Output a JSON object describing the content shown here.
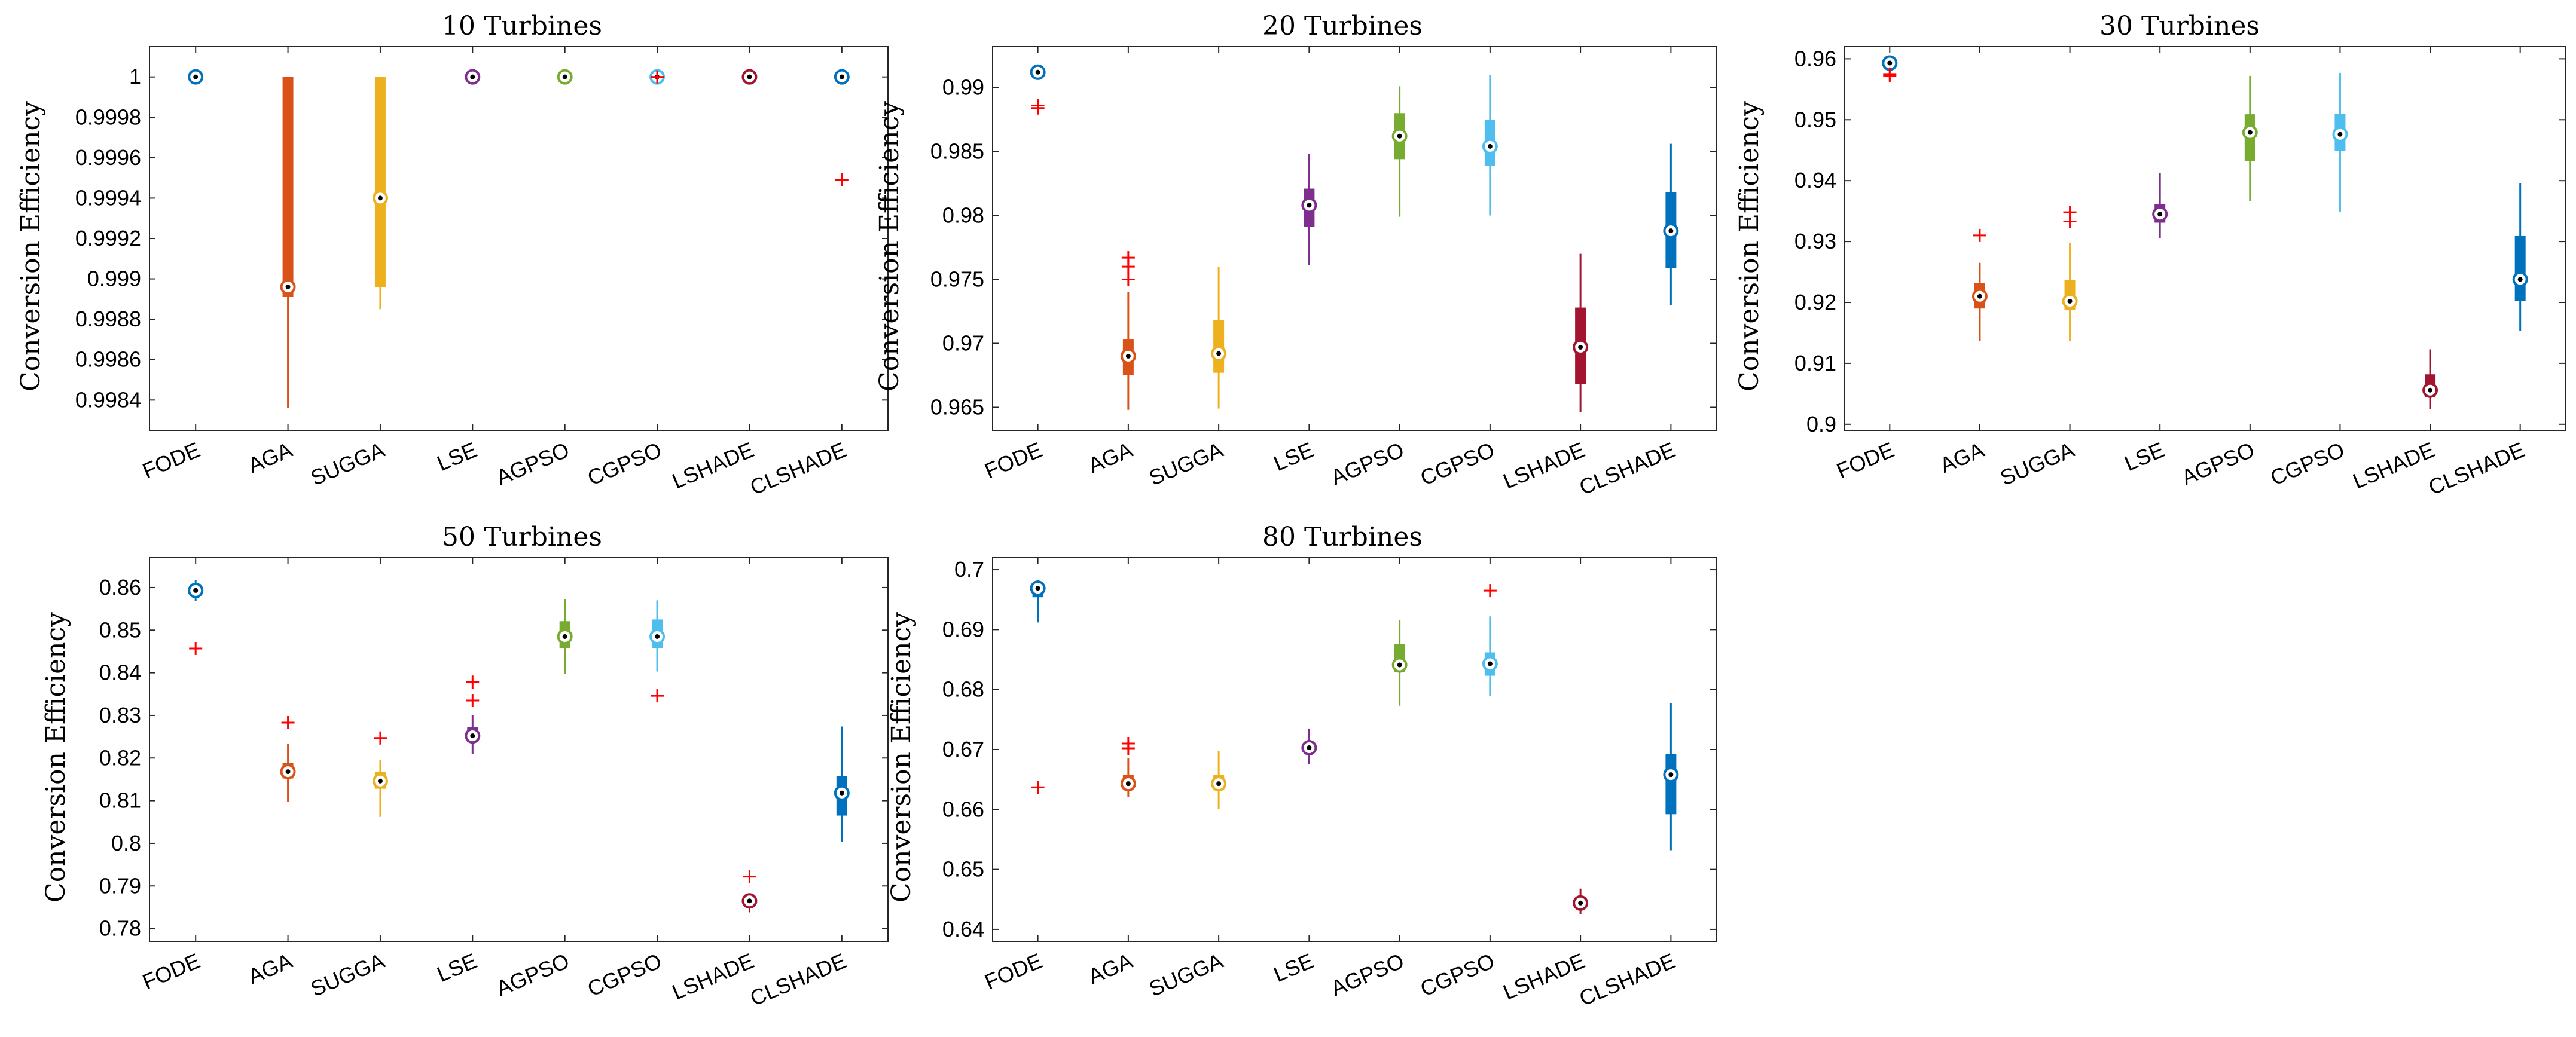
{
  "chart_data": [
    {
      "type": "boxplot",
      "title": "10 Turbines",
      "xlabel": "",
      "ylabel": "Conversion Efficiency",
      "categories": [
        "FODE",
        "AGA",
        "SUGGA",
        "LSE",
        "AGPSO",
        "CGPSO",
        "LSHADE",
        "CLSHADE"
      ],
      "ylim": [
        0.99825,
        1.00015
      ],
      "yticks": [
        0.9984,
        0.9986,
        0.9988,
        0.999,
        0.9992,
        0.9994,
        0.9996,
        0.9998,
        1
      ],
      "ytick_labels": [
        "0.9984",
        "0.9986",
        "0.9988",
        "0.999",
        "0.9992",
        "0.9994",
        "0.9996",
        "0.9998",
        "1"
      ],
      "boxes": [
        {
          "median": 1,
          "q1": 1,
          "q3": 1,
          "whisker_low": 1,
          "whisker_high": 1,
          "outliers": []
        },
        {
          "median": 0.99896,
          "q1": 0.99891,
          "q3": 1,
          "whisker_low": 0.99836,
          "whisker_high": 1,
          "outliers": []
        },
        {
          "median": 0.9994,
          "q1": 0.99896,
          "q3": 1,
          "whisker_low": 0.99885,
          "whisker_high": 1,
          "outliers": []
        },
        {
          "median": 1,
          "q1": 1,
          "q3": 1,
          "whisker_low": 1,
          "whisker_high": 1,
          "outliers": []
        },
        {
          "median": 1,
          "q1": 1,
          "q3": 1,
          "whisker_low": 1,
          "whisker_high": 1,
          "outliers": []
        },
        {
          "median": 1,
          "q1": 1,
          "q3": 1,
          "whisker_low": 1,
          "whisker_high": 1,
          "outliers": [
            1
          ]
        },
        {
          "median": 1,
          "q1": 1,
          "q3": 1,
          "whisker_low": 1,
          "whisker_high": 1,
          "outliers": []
        },
        {
          "median": 1,
          "q1": 1,
          "q3": 1,
          "whisker_low": 1,
          "whisker_high": 1,
          "outliers": [
            0.99949
          ]
        }
      ]
    },
    {
      "type": "boxplot",
      "title": "20 Turbines",
      "xlabel": "",
      "ylabel": "Conversion Efficiency",
      "categories": [
        "FODE",
        "AGA",
        "SUGGA",
        "LSE",
        "AGPSO",
        "CGPSO",
        "LSHADE",
        "CLSHADE"
      ],
      "ylim": [
        0.9632,
        0.9932
      ],
      "yticks": [
        0.965,
        0.97,
        0.975,
        0.98,
        0.985,
        0.99
      ],
      "ytick_labels": [
        "0.965",
        "0.97",
        "0.975",
        "0.98",
        "0.985",
        "0.99"
      ],
      "boxes": [
        {
          "median": 0.9912,
          "q1": 0.9908,
          "q3": 0.9916,
          "whisker_low": 0.9906,
          "whisker_high": 0.9918,
          "outliers": [
            0.9886,
            0.9884
          ]
        },
        {
          "median": 0.969,
          "q1": 0.9675,
          "q3": 0.9703,
          "whisker_low": 0.9648,
          "whisker_high": 0.974,
          "outliers": [
            0.975,
            0.976,
            0.9767
          ]
        },
        {
          "median": 0.9692,
          "q1": 0.9677,
          "q3": 0.9718,
          "whisker_low": 0.9649,
          "whisker_high": 0.976,
          "outliers": []
        },
        {
          "median": 0.9808,
          "q1": 0.9791,
          "q3": 0.9821,
          "whisker_low": 0.9761,
          "whisker_high": 0.9848,
          "outliers": []
        },
        {
          "median": 0.9862,
          "q1": 0.9844,
          "q3": 0.988,
          "whisker_low": 0.9799,
          "whisker_high": 0.9901,
          "outliers": []
        },
        {
          "median": 0.9854,
          "q1": 0.9839,
          "q3": 0.9875,
          "whisker_low": 0.98,
          "whisker_high": 0.991,
          "outliers": []
        },
        {
          "median": 0.9697,
          "q1": 0.9668,
          "q3": 0.9728,
          "whisker_low": 0.9646,
          "whisker_high": 0.977,
          "outliers": []
        },
        {
          "median": 0.9788,
          "q1": 0.9759,
          "q3": 0.9818,
          "whisker_low": 0.973,
          "whisker_high": 0.9856,
          "outliers": []
        }
      ]
    },
    {
      "type": "boxplot",
      "title": "30 Turbines",
      "xlabel": "",
      "ylabel": "Conversion Efficiency",
      "categories": [
        "FODE",
        "AGA",
        "SUGGA",
        "LSE",
        "AGPSO",
        "CGPSO",
        "LSHADE",
        "CLSHADE"
      ],
      "ylim": [
        0.899,
        0.962
      ],
      "yticks": [
        0.9,
        0.91,
        0.92,
        0.93,
        0.94,
        0.95,
        0.96
      ],
      "ytick_labels": [
        "0.9",
        "0.91",
        "0.92",
        "0.93",
        "0.94",
        "0.95",
        "0.96"
      ],
      "boxes": [
        {
          "median": 0.9593,
          "q1": 0.9589,
          "q3": 0.9599,
          "whisker_low": 0.9586,
          "whisker_high": 0.9603,
          "outliers": [
            0.9575,
            0.9572
          ]
        },
        {
          "median": 0.921,
          "q1": 0.919,
          "q3": 0.9232,
          "whisker_low": 0.9137,
          "whisker_high": 0.9265,
          "outliers": [
            0.931
          ]
        },
        {
          "median": 0.9202,
          "q1": 0.9188,
          "q3": 0.9237,
          "whisker_low": 0.9137,
          "whisker_high": 0.9298,
          "outliers": [
            0.9333,
            0.9348
          ]
        },
        {
          "median": 0.9345,
          "q1": 0.9331,
          "q3": 0.9361,
          "whisker_low": 0.9305,
          "whisker_high": 0.9412,
          "outliers": []
        },
        {
          "median": 0.9479,
          "q1": 0.9432,
          "q3": 0.9509,
          "whisker_low": 0.9366,
          "whisker_high": 0.9572,
          "outliers": []
        },
        {
          "median": 0.9476,
          "q1": 0.9449,
          "q3": 0.951,
          "whisker_low": 0.9349,
          "whisker_high": 0.9577,
          "outliers": []
        },
        {
          "median": 0.9056,
          "q1": 0.9045,
          "q3": 0.9082,
          "whisker_low": 0.9025,
          "whisker_high": 0.9123,
          "outliers": []
        },
        {
          "median": 0.9238,
          "q1": 0.9202,
          "q3": 0.9309,
          "whisker_low": 0.9153,
          "whisker_high": 0.9396,
          "outliers": []
        }
      ]
    },
    {
      "type": "boxplot",
      "title": "50 Turbines",
      "xlabel": "",
      "ylabel": "Conversion Efficiency",
      "categories": [
        "FODE",
        "AGA",
        "SUGGA",
        "LSE",
        "AGPSO",
        "CGPSO",
        "LSHADE",
        "CLSHADE"
      ],
      "ylim": [
        0.777,
        0.867
      ],
      "yticks": [
        0.78,
        0.79,
        0.8,
        0.81,
        0.82,
        0.83,
        0.84,
        0.85,
        0.86
      ],
      "ytick_labels": [
        "0.78",
        "0.79",
        "0.8",
        "0.81",
        "0.82",
        "0.83",
        "0.84",
        "0.85",
        "0.86"
      ],
      "boxes": [
        {
          "median": 0.8593,
          "q1": 0.8582,
          "q3": 0.8608,
          "whisker_low": 0.8568,
          "whisker_high": 0.8618,
          "outliers": [
            0.8457
          ]
        },
        {
          "median": 0.8168,
          "q1": 0.8152,
          "q3": 0.8188,
          "whisker_low": 0.8097,
          "whisker_high": 0.8234,
          "outliers": [
            0.8283
          ]
        },
        {
          "median": 0.8146,
          "q1": 0.8128,
          "q3": 0.8168,
          "whisker_low": 0.8062,
          "whisker_high": 0.8195,
          "outliers": [
            0.8247
          ]
        },
        {
          "median": 0.8252,
          "q1": 0.8237,
          "q3": 0.8272,
          "whisker_low": 0.821,
          "whisker_high": 0.83,
          "outliers": [
            0.8335,
            0.8378
          ]
        },
        {
          "median": 0.8485,
          "q1": 0.8457,
          "q3": 0.8521,
          "whisker_low": 0.8397,
          "whisker_high": 0.8573,
          "outliers": []
        },
        {
          "median": 0.8485,
          "q1": 0.8458,
          "q3": 0.8525,
          "whisker_low": 0.8403,
          "whisker_high": 0.857,
          "outliers": [
            0.8346
          ]
        },
        {
          "median": 0.7865,
          "q1": 0.7855,
          "q3": 0.7875,
          "whisker_low": 0.7838,
          "whisker_high": 0.7882,
          "outliers": [
            0.7922
          ]
        },
        {
          "median": 0.8118,
          "q1": 0.8065,
          "q3": 0.8157,
          "whisker_low": 0.8004,
          "whisker_high": 0.8274,
          "outliers": []
        }
      ]
    },
    {
      "type": "boxplot",
      "title": "80 Turbines",
      "xlabel": "",
      "ylabel": "Conversion Efficiency",
      "categories": [
        "FODE",
        "AGA",
        "SUGGA",
        "LSE",
        "AGPSO",
        "CGPSO",
        "LSHADE",
        "CLSHADE"
      ],
      "ylim": [
        0.638,
        0.702
      ],
      "yticks": [
        0.64,
        0.65,
        0.66,
        0.67,
        0.68,
        0.69,
        0.7
      ],
      "ytick_labels": [
        "0.64",
        "0.65",
        "0.66",
        "0.67",
        "0.68",
        "0.69",
        "0.7"
      ],
      "boxes": [
        {
          "median": 0.6969,
          "q1": 0.6954,
          "q3": 0.6976,
          "whisker_low": 0.6912,
          "whisker_high": 0.6983,
          "outliers": [
            0.6637
          ]
        },
        {
          "median": 0.6643,
          "q1": 0.6634,
          "q3": 0.6658,
          "whisker_low": 0.6621,
          "whisker_high": 0.6685,
          "outliers": [
            0.6702,
            0.671
          ]
        },
        {
          "median": 0.6643,
          "q1": 0.6634,
          "q3": 0.6658,
          "whisker_low": 0.6601,
          "whisker_high": 0.6697,
          "outliers": []
        },
        {
          "median": 0.6703,
          "q1": 0.6695,
          "q3": 0.6711,
          "whisker_low": 0.6675,
          "whisker_high": 0.6735,
          "outliers": []
        },
        {
          "median": 0.6841,
          "q1": 0.6829,
          "q3": 0.6876,
          "whisker_low": 0.6773,
          "whisker_high": 0.6916,
          "outliers": []
        },
        {
          "median": 0.6843,
          "q1": 0.6823,
          "q3": 0.6862,
          "whisker_low": 0.6789,
          "whisker_high": 0.6922,
          "outliers": [
            0.6965
          ]
        },
        {
          "median": 0.6444,
          "q1": 0.6437,
          "q3": 0.6452,
          "whisker_low": 0.6425,
          "whisker_high": 0.6468,
          "outliers": []
        },
        {
          "median": 0.6658,
          "q1": 0.6592,
          "q3": 0.6693,
          "whisker_low": 0.6532,
          "whisker_high": 0.6777,
          "outliers": []
        }
      ]
    }
  ],
  "colors": {
    "FODE": "#0072BD",
    "AGA": "#D95319",
    "SUGGA": "#EDB120",
    "LSE": "#7E2F8E",
    "AGPSO": "#77AC30",
    "CGPSO": "#4DBEEE",
    "LSHADE": "#A2142F",
    "CLSHADE": "#0072BD",
    "outlier": "#FF0000",
    "axis": "#262626"
  }
}
